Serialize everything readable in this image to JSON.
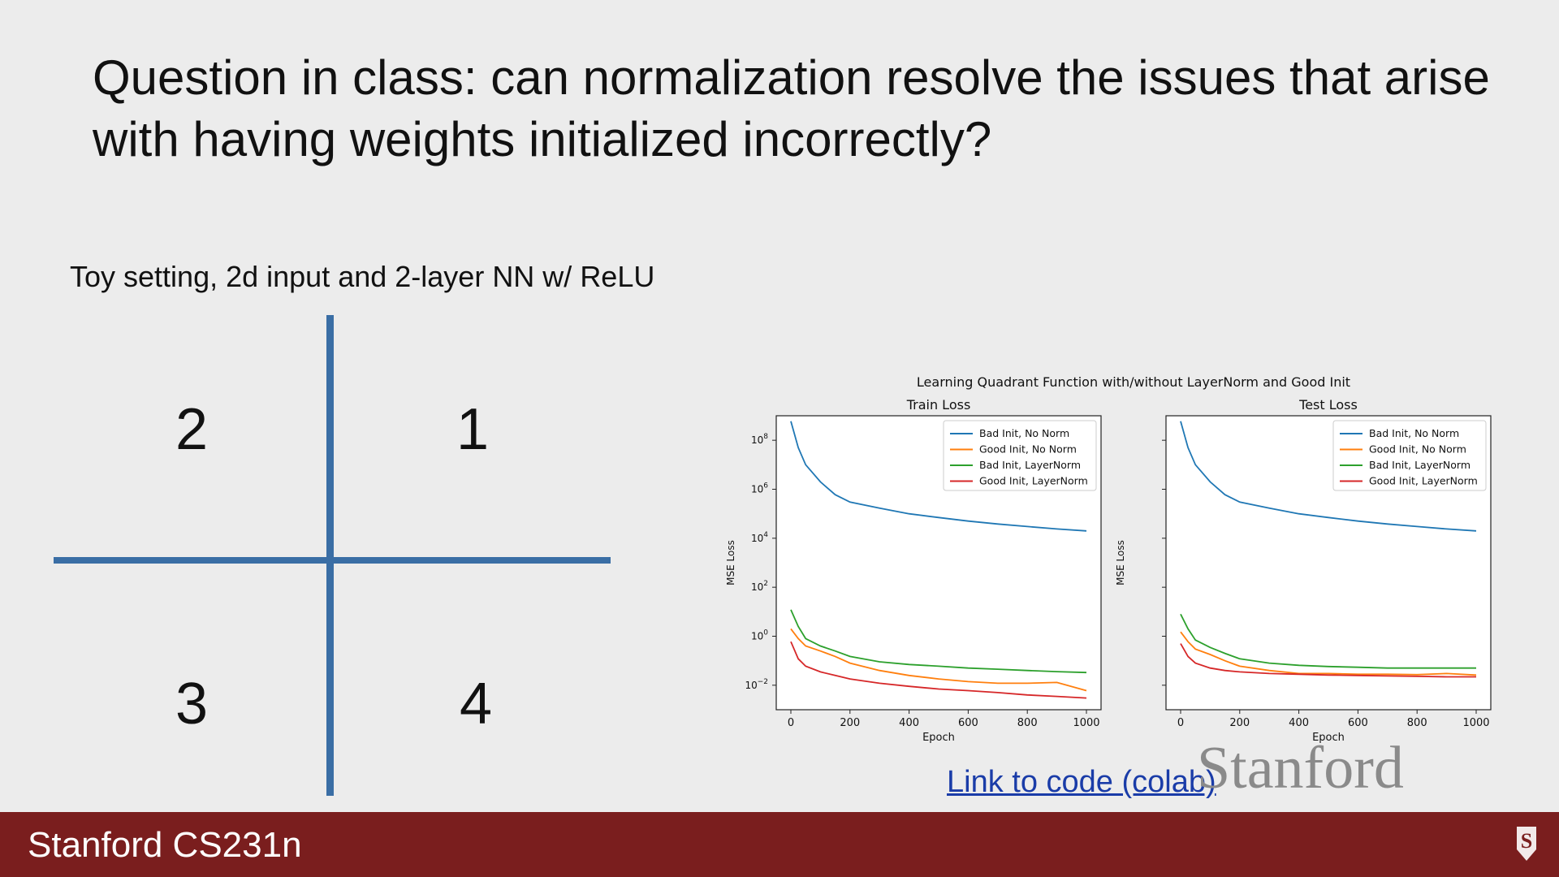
{
  "slide": {
    "title": "Question in class: can normalization resolve the issues that arise with having weights initialized incorrectly?",
    "subtitle": "Toy setting, 2d input and 2-layer NN w/ ReLU",
    "link_text": "Link to code (colab)",
    "watermark": "Stanford",
    "footer": "Stanford CS231n"
  },
  "quadrants": {
    "q1": "1",
    "q2": "2",
    "q3": "3",
    "q4": "4"
  },
  "colors": {
    "axis_line": "#3a6ea5",
    "footer_bg": "#7a1e1e",
    "link": "#1a3ca8",
    "series": [
      "#1f77b4",
      "#ff7f0e",
      "#2ca02c",
      "#d62728"
    ]
  },
  "chart_data": [
    {
      "type": "line",
      "suptitle": "Learning Quadrant Function with/without LayerNorm and Good Init",
      "title": "Train Loss",
      "xlabel": "Epoch",
      "ylabel": "MSE Loss",
      "xlim": [
        0,
        1000
      ],
      "ylim": [
        0.001,
        1000000000
      ],
      "yscale": "log",
      "xticks": [
        "0",
        "200",
        "400",
        "600",
        "800",
        "1000"
      ],
      "yticks": [
        {
          "base": "10",
          "exp": "8"
        },
        {
          "base": "10",
          "exp": "6"
        },
        {
          "base": "10",
          "exp": "4"
        },
        {
          "base": "10",
          "exp": "2"
        },
        {
          "base": "10",
          "exp": "0"
        },
        {
          "base": "10",
          "exp": "−2"
        }
      ],
      "legend_position": "top-right",
      "x": [
        0,
        25,
        50,
        100,
        150,
        200,
        300,
        400,
        500,
        600,
        700,
        800,
        900,
        1000
      ],
      "series": [
        {
          "name": "Bad Init, No Norm",
          "values": [
            600000000,
            50000000,
            10000000,
            2000000,
            600000,
            300000,
            170000,
            100000,
            70000,
            50000,
            38000,
            30000,
            24000,
            20000
          ]
        },
        {
          "name": "Good Init, No Norm",
          "values": [
            2,
            0.8,
            0.4,
            0.25,
            0.15,
            0.08,
            0.04,
            0.025,
            0.018,
            0.014,
            0.012,
            0.012,
            0.013,
            0.006
          ]
        },
        {
          "name": "Bad Init, LayerNorm",
          "values": [
            12,
            2.5,
            0.8,
            0.4,
            0.25,
            0.15,
            0.09,
            0.07,
            0.06,
            0.05,
            0.045,
            0.04,
            0.036,
            0.033
          ]
        },
        {
          "name": "Good Init, LayerNorm",
          "values": [
            0.6,
            0.12,
            0.06,
            0.035,
            0.025,
            0.018,
            0.012,
            0.009,
            0.007,
            0.006,
            0.005,
            0.004,
            0.0035,
            0.003
          ]
        }
      ]
    },
    {
      "type": "line",
      "title": "Test Loss",
      "xlabel": "Epoch",
      "ylabel": "MSE Loss",
      "xlim": [
        0,
        1000
      ],
      "ylim": [
        0.001,
        1000000000
      ],
      "yscale": "log",
      "xticks": [
        "0",
        "200",
        "400",
        "600",
        "800",
        "1000"
      ],
      "legend_position": "top-right",
      "x": [
        0,
        25,
        50,
        100,
        150,
        200,
        300,
        400,
        500,
        600,
        700,
        800,
        900,
        1000
      ],
      "series": [
        {
          "name": "Bad Init, No Norm",
          "values": [
            600000000,
            50000000,
            10000000,
            2000000,
            600000,
            300000,
            170000,
            100000,
            70000,
            50000,
            38000,
            30000,
            24000,
            20000
          ]
        },
        {
          "name": "Good Init, No Norm",
          "values": [
            1.5,
            0.6,
            0.3,
            0.18,
            0.1,
            0.06,
            0.04,
            0.03,
            0.03,
            0.028,
            0.028,
            0.027,
            0.03,
            0.026
          ]
        },
        {
          "name": "Bad Init, LayerNorm",
          "values": [
            8,
            2,
            0.7,
            0.35,
            0.2,
            0.12,
            0.08,
            0.065,
            0.058,
            0.054,
            0.05,
            0.05,
            0.05,
            0.05
          ]
        },
        {
          "name": "Good Init, LayerNorm",
          "values": [
            0.5,
            0.15,
            0.08,
            0.05,
            0.04,
            0.035,
            0.03,
            0.028,
            0.026,
            0.025,
            0.024,
            0.023,
            0.022,
            0.022
          ]
        }
      ]
    }
  ]
}
